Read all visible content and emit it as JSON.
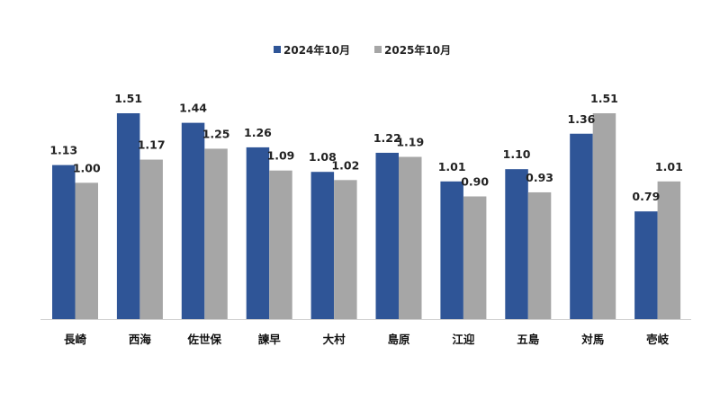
{
  "chart_data": {
    "type": "bar",
    "categories": [
      "長崎",
      "西海",
      "佐世保",
      "諫早",
      "大村",
      "島原",
      "江迎",
      "五島",
      "対馬",
      "壱岐"
    ],
    "series": [
      {
        "name": "2024年10月",
        "color": "#2f5597",
        "values": [
          1.13,
          1.51,
          1.44,
          1.26,
          1.08,
          1.22,
          1.01,
          1.1,
          1.36,
          0.79
        ],
        "labels": [
          "1.13",
          "1.51",
          "1.44",
          "1.26",
          "1.08",
          "1.22",
          "1.01",
          "1.10",
          "1.36",
          "0.79"
        ]
      },
      {
        "name": "2025年10月",
        "color": "#a6a6a6",
        "values": [
          1.0,
          1.17,
          1.25,
          1.09,
          1.02,
          1.19,
          0.9,
          0.93,
          1.51,
          1.01
        ],
        "labels": [
          "1.00",
          "1.17",
          "1.25",
          "1.09",
          "1.02",
          "1.19",
          "0.90",
          "0.93",
          "1.51",
          "1.01"
        ]
      }
    ],
    "ylim": [
      0,
      1.51
    ],
    "grid": false,
    "legend_position": "top-center",
    "title": "",
    "xlabel": "",
    "ylabel": ""
  }
}
